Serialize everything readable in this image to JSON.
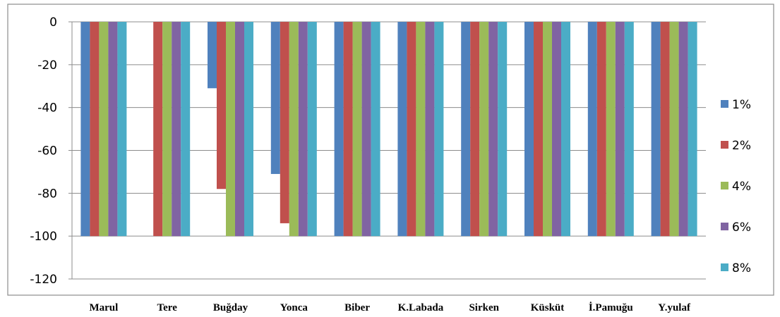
{
  "chart_data": {
    "type": "bar",
    "categories": [
      "Marul",
      "Tere",
      "Buğday",
      "Yonca",
      "Biber",
      "K.Labada",
      "Sirken",
      "Küsküt",
      "İ.Pamuğu",
      "Y.yulaf"
    ],
    "series": [
      {
        "name": "1%",
        "color": "#4F81BD",
        "values": [
          -100,
          0,
          -31,
          -71,
          -100,
          -100,
          -100,
          -100,
          -100,
          -100
        ]
      },
      {
        "name": "2%",
        "color": "#C0504D",
        "values": [
          -100,
          -100,
          -78,
          -94,
          -100,
          -100,
          -100,
          -100,
          -100,
          -100
        ]
      },
      {
        "name": "4%",
        "color": "#9BBB59",
        "values": [
          -100,
          -100,
          -100,
          -100,
          -100,
          -100,
          -100,
          -100,
          -100,
          -100
        ]
      },
      {
        "name": "6%",
        "color": "#8064A2",
        "values": [
          -100,
          -100,
          -100,
          -100,
          -100,
          -100,
          -100,
          -100,
          -100,
          -100
        ]
      },
      {
        "name": "8%",
        "color": "#4BACC6",
        "values": [
          -100,
          -100,
          -100,
          -100,
          -100,
          -100,
          -100,
          -100,
          -100,
          -100
        ]
      }
    ],
    "yticks": [
      "0",
      "-20",
      "-40",
      "-60",
      "-80",
      "-100",
      "-120"
    ],
    "ylim": [
      -120,
      0
    ],
    "grid": true,
    "legend_position": "right",
    "title": "",
    "xlabel": "",
    "ylabel": ""
  }
}
